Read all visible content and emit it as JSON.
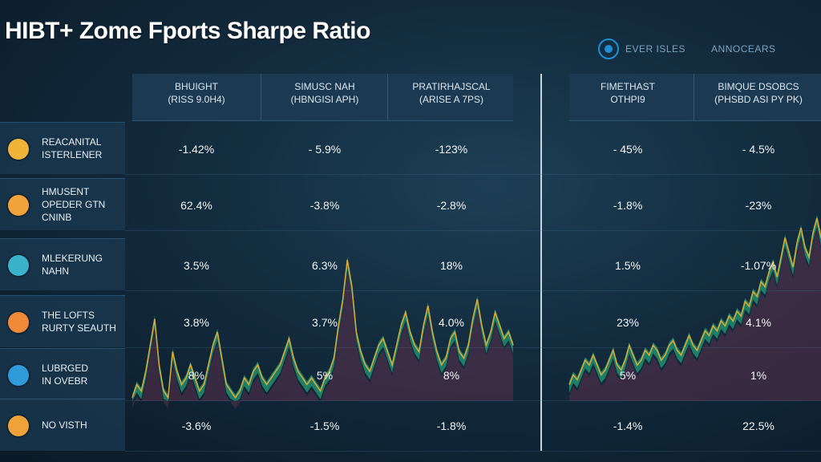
{
  "title": "HIBT+ Zome Fports Sharpe Ratio",
  "brand": {
    "name": "EVER ISLES",
    "tagline": "ANNOCEARS",
    "color": "#1d8fd6"
  },
  "chart_data": {
    "type": "table",
    "columns": [
      {
        "label": [
          "BHUIGHT",
          "(RISS 9.0H4)"
        ]
      },
      {
        "label": [
          "SIMUSC NAH",
          "(HBNGISI APH)"
        ]
      },
      {
        "label": [
          "PRATIRHAJSCAL",
          "(ARISE A 7PS)"
        ]
      },
      {
        "label": [
          "FIMETHAST",
          "OTHPI9"
        ]
      },
      {
        "label": [
          "BIMQUE DSOBCS",
          "(PHSBD ASI PY PK)"
        ]
      }
    ],
    "rows": [
      {
        "label": [
          "REACANITAL",
          "ISTERLENER"
        ],
        "icon": "compass-icon",
        "icon_color": "#f0b43a",
        "values": [
          "-1.42%",
          "- 5.9%",
          "-123%",
          "- 45%",
          "- 4.5%"
        ]
      },
      {
        "label": [
          "HMUSENT",
          "OPEDER GTN",
          "CNINB"
        ],
        "icon": "smile-icon",
        "icon_color": "#f2a23b",
        "values": [
          "62.4%",
          "-3.8%",
          "-2.8%",
          "-1.8%",
          "-23%"
        ]
      },
      {
        "label": [
          "Mlekerung",
          "NAHN"
        ],
        "icon": "ticket-icon",
        "icon_color": "#3ab3c9",
        "values": [
          "3.5%",
          "6.3%",
          "18%",
          "1.5%",
          "-1.07%"
        ]
      },
      {
        "label": [
          "THE LOFTS",
          "RURTY SEAUTH"
        ],
        "icon": "flame-icon",
        "icon_color": "#f08a3a",
        "values": [
          "3.8%",
          "3.7%",
          "4.0%",
          "23%",
          "4.1%"
        ]
      },
      {
        "label": [
          "LUBRGED",
          "IN OVEBR"
        ],
        "icon": "bird-icon",
        "icon_color": "#2f9bd8",
        "values": [
          "8%",
          "5%",
          "8%",
          "5%",
          "1%"
        ]
      },
      {
        "label": [
          "NO VISTH"
        ],
        "icon": "coin-icon",
        "icon_color": "#f0a23a",
        "values": [
          "-3.6%",
          "-1.5%",
          "-1.8%",
          "-1.4%",
          "22.5%"
        ]
      }
    ],
    "series_colors": {
      "band": "#1f8f70",
      "line": "#d6a83a",
      "shadow": "#5b2f4a"
    },
    "left_panel_series": [
      1,
      3,
      2,
      5,
      9,
      13,
      6,
      2,
      1,
      8,
      5,
      3,
      4,
      6,
      4,
      2,
      3,
      6,
      9,
      11,
      7,
      3,
      2,
      1,
      2,
      4,
      3,
      5,
      6,
      4,
      3,
      4,
      5,
      6,
      8,
      10,
      7,
      5,
      4,
      3,
      4,
      3,
      2,
      4,
      5,
      7,
      12,
      16,
      22,
      18,
      11,
      8,
      6,
      5,
      7,
      9,
      10,
      8,
      6,
      9,
      12,
      14,
      11,
      9,
      8,
      12,
      15,
      11,
      8,
      6,
      7,
      10,
      11,
      8,
      7,
      9,
      13,
      16,
      12,
      9,
      11,
      14,
      12,
      10,
      11,
      9
    ],
    "right_panel_series": [
      4,
      6,
      5,
      7,
      9,
      8,
      10,
      8,
      6,
      7,
      9,
      11,
      8,
      7,
      9,
      12,
      10,
      8,
      9,
      11,
      10,
      12,
      11,
      9,
      10,
      12,
      13,
      11,
      10,
      12,
      14,
      12,
      11,
      13,
      15,
      14,
      16,
      15,
      17,
      16,
      18,
      17,
      19,
      18,
      21,
      20,
      23,
      22,
      25,
      24,
      27,
      29,
      26,
      30,
      34,
      31,
      28,
      33,
      36,
      32,
      30,
      35,
      38,
      34
    ]
  }
}
